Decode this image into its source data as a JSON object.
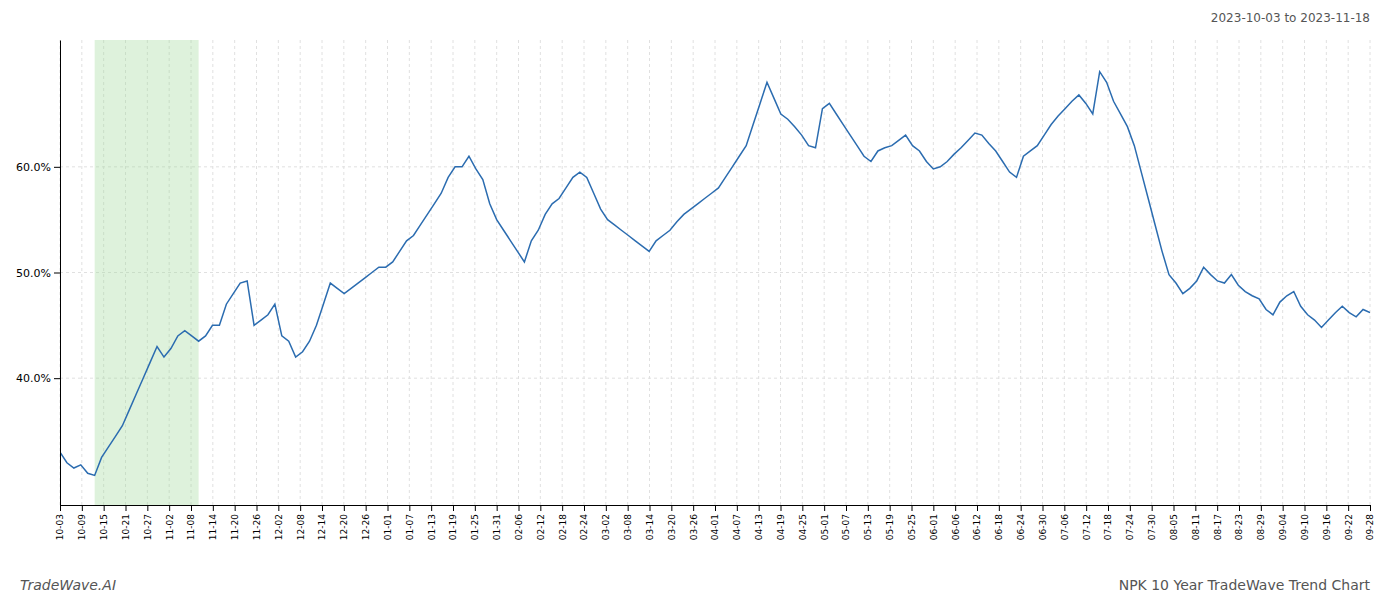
{
  "chart_data": {
    "type": "line",
    "title": "NPK 10 Year TradeWave Trend Chart",
    "subtitle": "2023-10-03 to 2023-11-18",
    "annotations": [
      "TradeWave.AI"
    ],
    "color": "#2b6cb0",
    "grid": true,
    "highlight": [
      5,
      20
    ],
    "xlim": [
      0,
      189
    ],
    "xticks": [
      {
        "value": 0,
        "label": "10-03"
      },
      {
        "value": 3.15,
        "label": "10-09"
      },
      {
        "value": 6.3,
        "label": "10-15"
      },
      {
        "value": 9.45,
        "label": "10-21"
      },
      {
        "value": 12.6,
        "label": "10-27"
      },
      {
        "value": 15.75,
        "label": "11-02"
      },
      {
        "value": 18.9,
        "label": "11-08"
      },
      {
        "value": 22.05,
        "label": "11-14"
      },
      {
        "value": 25.2,
        "label": "11-20"
      },
      {
        "value": 28.35,
        "label": "11-26"
      },
      {
        "value": 31.5,
        "label": "12-02"
      },
      {
        "value": 34.65,
        "label": "12-08"
      },
      {
        "value": 37.8,
        "label": "12-14"
      },
      {
        "value": 40.95,
        "label": "12-20"
      },
      {
        "value": 44.1,
        "label": "12-26"
      },
      {
        "value": 47.25,
        "label": "01-01"
      },
      {
        "value": 50.4,
        "label": "01-07"
      },
      {
        "value": 53.55,
        "label": "01-13"
      },
      {
        "value": 56.7,
        "label": "01-19"
      },
      {
        "value": 59.85,
        "label": "01-25"
      },
      {
        "value": 63,
        "label": "01-31"
      },
      {
        "value": 66.15,
        "label": "02-06"
      },
      {
        "value": 69.3,
        "label": "02-12"
      },
      {
        "value": 72.45,
        "label": "02-18"
      },
      {
        "value": 75.6,
        "label": "02-24"
      },
      {
        "value": 78.75,
        "label": "03-02"
      },
      {
        "value": 81.9,
        "label": "03-08"
      },
      {
        "value": 85.05,
        "label": "03-14"
      },
      {
        "value": 88.2,
        "label": "03-20"
      },
      {
        "value": 91.35,
        "label": "03-26"
      },
      {
        "value": 94.5,
        "label": "04-01"
      },
      {
        "value": 97.65,
        "label": "04-07"
      },
      {
        "value": 100.8,
        "label": "04-13"
      },
      {
        "value": 103.95,
        "label": "04-19"
      },
      {
        "value": 107.1,
        "label": "04-25"
      },
      {
        "value": 110.25,
        "label": "05-01"
      },
      {
        "value": 113.4,
        "label": "05-07"
      },
      {
        "value": 116.55,
        "label": "05-13"
      },
      {
        "value": 119.7,
        "label": "05-19"
      },
      {
        "value": 122.85,
        "label": "05-25"
      },
      {
        "value": 126,
        "label": "06-01"
      },
      {
        "value": 129.15,
        "label": "06-06"
      },
      {
        "value": 132.3,
        "label": "06-12"
      },
      {
        "value": 135.45,
        "label": "06-18"
      },
      {
        "value": 138.6,
        "label": "06-24"
      },
      {
        "value": 141.75,
        "label": "06-30"
      },
      {
        "value": 144.9,
        "label": "07-06"
      },
      {
        "value": 148.05,
        "label": "07-12"
      },
      {
        "value": 151.2,
        "label": "07-18"
      },
      {
        "value": 154.35,
        "label": "07-24"
      },
      {
        "value": 157.5,
        "label": "07-30"
      },
      {
        "value": 160.65,
        "label": "08-05"
      },
      {
        "value": 163.8,
        "label": "08-11"
      },
      {
        "value": 166.95,
        "label": "08-17"
      },
      {
        "value": 170.1,
        "label": "08-23"
      },
      {
        "value": 173.25,
        "label": "08-29"
      },
      {
        "value": 176.4,
        "label": "09-04"
      },
      {
        "value": 179.55,
        "label": "09-10"
      },
      {
        "value": 182.7,
        "label": "09-16"
      },
      {
        "value": 185.85,
        "label": "09-22"
      },
      {
        "value": 189,
        "label": "09-28"
      }
    ],
    "ylim": [
      0.28,
      0.72
    ],
    "yticks": [
      {
        "value": 0.4,
        "label": "40.0%"
      },
      {
        "value": 0.5,
        "label": "50.0%"
      },
      {
        "value": 0.6,
        "label": "60.0%"
      }
    ],
    "x": [
      0,
      1,
      2,
      3,
      4,
      5,
      6,
      7,
      8,
      9,
      10,
      11,
      12,
      13,
      14,
      15,
      16,
      17,
      18,
      19,
      20,
      21,
      22,
      23,
      24,
      25,
      26,
      27,
      28,
      29,
      30,
      31,
      32,
      33,
      34,
      35,
      36,
      37,
      38,
      39,
      40,
      41,
      42,
      43,
      44,
      45,
      46,
      47,
      48,
      49,
      50,
      51,
      52,
      53,
      54,
      55,
      56,
      57,
      58,
      59,
      60,
      61,
      62,
      63,
      64,
      65,
      66,
      67,
      68,
      69,
      70,
      71,
      72,
      73,
      74,
      75,
      76,
      77,
      78,
      79,
      80,
      81,
      82,
      83,
      84,
      85,
      86,
      87,
      88,
      89,
      90,
      91,
      92,
      93,
      94,
      95,
      96,
      97,
      98,
      99,
      100,
      101,
      102,
      103,
      104,
      105,
      106,
      107,
      108,
      109,
      110,
      111,
      112,
      113,
      114,
      115,
      116,
      117,
      118,
      119,
      120,
      121,
      122,
      123,
      124,
      125,
      126,
      127,
      128,
      129,
      130,
      131,
      132,
      133,
      134,
      135,
      136,
      137,
      138,
      139,
      140,
      141,
      142,
      143,
      144,
      145,
      146,
      147,
      148,
      149,
      150,
      151,
      152,
      153,
      154,
      155,
      156,
      157,
      158,
      159,
      160,
      161,
      162,
      163,
      164,
      165,
      166,
      167,
      168,
      169,
      170,
      171,
      172,
      173,
      174,
      175,
      176,
      177,
      178,
      179,
      180,
      181,
      182,
      183,
      184,
      185,
      186,
      187,
      188,
      189
    ],
    "values": [
      0.33,
      0.32,
      0.315,
      0.318,
      0.31,
      0.308,
      0.325,
      0.335,
      0.345,
      0.355,
      0.37,
      0.385,
      0.4,
      0.415,
      0.43,
      0.42,
      0.428,
      0.44,
      0.445,
      0.44,
      0.435,
      0.44,
      0.45,
      0.45,
      0.47,
      0.48,
      0.49,
      0.492,
      0.45,
      0.455,
      0.46,
      0.47,
      0.44,
      0.435,
      0.42,
      0.425,
      0.435,
      0.45,
      0.47,
      0.49,
      0.485,
      0.48,
      0.485,
      0.49,
      0.495,
      0.5,
      0.505,
      0.505,
      0.51,
      0.52,
      0.53,
      0.535,
      0.545,
      0.555,
      0.565,
      0.575,
      0.59,
      0.6,
      0.6,
      0.61,
      0.598,
      0.588,
      0.565,
      0.55,
      0.54,
      0.53,
      0.52,
      0.51,
      0.53,
      0.54,
      0.555,
      0.565,
      0.57,
      0.58,
      0.59,
      0.595,
      0.59,
      0.575,
      0.56,
      0.55,
      0.545,
      0.54,
      0.535,
      0.53,
      0.525,
      0.52,
      0.53,
      0.535,
      0.54,
      0.548,
      0.555,
      0.56,
      0.565,
      0.57,
      0.575,
      0.58,
      0.59,
      0.6,
      0.61,
      0.62,
      0.64,
      0.66,
      0.68,
      0.665,
      0.65,
      0.645,
      0.638,
      0.63,
      0.62,
      0.618,
      0.655,
      0.66,
      0.65,
      0.64,
      0.63,
      0.62,
      0.61,
      0.605,
      0.615,
      0.618,
      0.62,
      0.625,
      0.63,
      0.62,
      0.615,
      0.605,
      0.598,
      0.6,
      0.605,
      0.612,
      0.618,
      0.625,
      0.632,
      0.63,
      0.622,
      0.615,
      0.605,
      0.595,
      0.59,
      0.61,
      0.615,
      0.62,
      0.63,
      0.64,
      0.648,
      0.655,
      0.662,
      0.668,
      0.66,
      0.65,
      0.69,
      0.68,
      0.662,
      0.65,
      0.638,
      0.62,
      0.595,
      0.57,
      0.545,
      0.52,
      0.498,
      0.49,
      0.48,
      0.485,
      0.492,
      0.505,
      0.498,
      0.492,
      0.49,
      0.498,
      0.488,
      0.482,
      0.478,
      0.475,
      0.465,
      0.46,
      0.472,
      0.478,
      0.482,
      0.468,
      0.46,
      0.455,
      0.448,
      0.455,
      0.462,
      0.468,
      0.462,
      0.458,
      0.465,
      0.462
    ]
  }
}
